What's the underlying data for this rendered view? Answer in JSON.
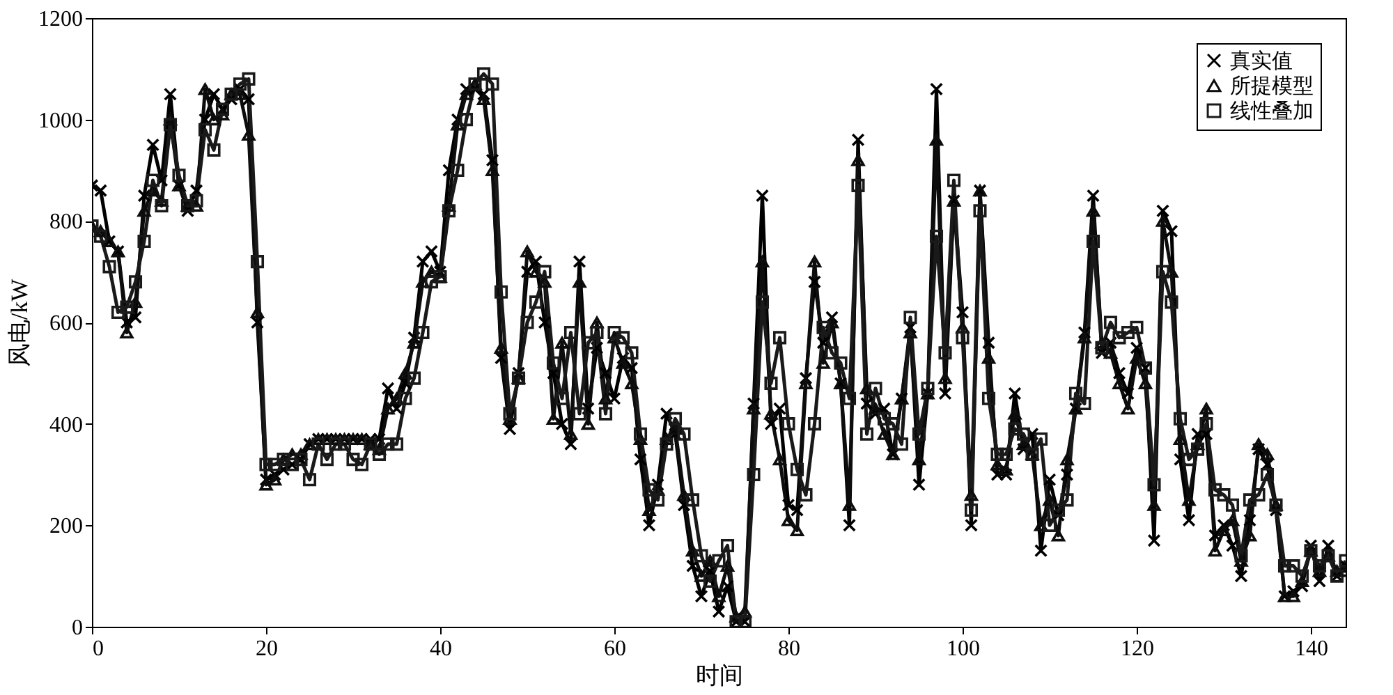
{
  "chart_data": {
    "type": "line",
    "xlabel": "时间",
    "ylabel": "风电/kW",
    "x": [
      0,
      1,
      2,
      3,
      4,
      5,
      6,
      7,
      8,
      9,
      10,
      11,
      12,
      13,
      14,
      15,
      16,
      17,
      18,
      19,
      20,
      21,
      22,
      23,
      24,
      25,
      26,
      27,
      28,
      29,
      30,
      31,
      32,
      33,
      34,
      35,
      36,
      37,
      38,
      39,
      40,
      41,
      42,
      43,
      44,
      45,
      46,
      47,
      48,
      49,
      50,
      51,
      52,
      53,
      54,
      55,
      56,
      57,
      58,
      59,
      60,
      61,
      62,
      63,
      64,
      65,
      66,
      67,
      68,
      69,
      70,
      71,
      72,
      73,
      74,
      75,
      76,
      77,
      78,
      79,
      80,
      81,
      82,
      83,
      84,
      85,
      86,
      87,
      88,
      89,
      90,
      91,
      92,
      93,
      94,
      95,
      96,
      97,
      98,
      99,
      100,
      101,
      102,
      103,
      104,
      105,
      106,
      107,
      108,
      109,
      110,
      111,
      112,
      113,
      114,
      115,
      116,
      117,
      118,
      119,
      120,
      121,
      122,
      123,
      124,
      125,
      126,
      127,
      128,
      129,
      130,
      131,
      132,
      133,
      134,
      135,
      136,
      137,
      138,
      139,
      140,
      141,
      142,
      143,
      144
    ],
    "series": [
      {
        "name": "真实值",
        "color": "#000000",
        "marker": "cross",
        "values": [
          870,
          860,
          760,
          740,
          600,
          610,
          850,
          950,
          880,
          1050,
          870,
          820,
          860,
          1000,
          1050,
          1020,
          1040,
          1060,
          1040,
          600,
          290,
          300,
          310,
          320,
          330,
          360,
          370,
          370,
          370,
          370,
          370,
          370,
          370,
          370,
          470,
          430,
          480,
          570,
          720,
          740,
          700,
          900,
          1000,
          1060,
          1060,
          1050,
          920,
          530,
          390,
          500,
          700,
          720,
          600,
          500,
          400,
          360,
          720,
          430,
          550,
          500,
          450,
          530,
          510,
          330,
          200,
          280,
          420,
          380,
          240,
          120,
          60,
          110,
          30,
          80,
          10,
          10,
          440,
          850,
          400,
          430,
          240,
          230,
          490,
          680,
          560,
          610,
          480,
          200,
          960,
          440,
          420,
          430,
          340,
          450,
          590,
          280,
          460,
          1060,
          460,
          840,
          620,
          200,
          860,
          560,
          300,
          300,
          460,
          350,
          380,
          150,
          290,
          220,
          300,
          430,
          580,
          850,
          540,
          560,
          500,
          460,
          550,
          510,
          170,
          820,
          780,
          330,
          210,
          380,
          380,
          180,
          200,
          160,
          100,
          210,
          350,
          320,
          230,
          60,
          70,
          80,
          160,
          90,
          160,
          100,
          120
        ]
      },
      {
        "name": "所提模型",
        "color": "#0d0d0d",
        "marker": "triangle",
        "values": [
          790,
          780,
          760,
          740,
          580,
          640,
          820,
          860,
          840,
          1000,
          870,
          830,
          830,
          1060,
          1000,
          1010,
          1050,
          1050,
          970,
          620,
          280,
          290,
          330,
          340,
          340,
          360,
          370,
          370,
          370,
          370,
          370,
          370,
          360,
          350,
          430,
          450,
          500,
          560,
          680,
          700,
          690,
          830,
          990,
          1050,
          1070,
          1040,
          900,
          550,
          410,
          490,
          740,
          700,
          680,
          410,
          560,
          380,
          680,
          400,
          600,
          450,
          570,
          520,
          480,
          370,
          230,
          270,
          370,
          390,
          260,
          150,
          100,
          130,
          60,
          120,
          20,
          30,
          430,
          720,
          420,
          330,
          210,
          190,
          480,
          720,
          520,
          600,
          480,
          240,
          920,
          470,
          430,
          380,
          340,
          450,
          580,
          330,
          460,
          960,
          490,
          840,
          590,
          260,
          860,
          530,
          320,
          310,
          420,
          360,
          340,
          200,
          250,
          180,
          330,
          430,
          570,
          820,
          560,
          540,
          480,
          430,
          530,
          480,
          240,
          800,
          700,
          370,
          250,
          360,
          430,
          150,
          190,
          210,
          130,
          180,
          360,
          340,
          240,
          60,
          60,
          90,
          150,
          110,
          140,
          110,
          110
        ]
      },
      {
        "name": "线性叠加",
        "color": "#1a1a1a",
        "marker": "square",
        "values": [
          790,
          770,
          710,
          620,
          630,
          680,
          760,
          880,
          830,
          990,
          890,
          830,
          840,
          980,
          940,
          1020,
          1050,
          1070,
          1080,
          720,
          320,
          320,
          330,
          320,
          330,
          290,
          360,
          330,
          360,
          360,
          330,
          320,
          360,
          340,
          360,
          360,
          450,
          490,
          580,
          680,
          690,
          820,
          900,
          1000,
          1070,
          1090,
          1070,
          660,
          420,
          490,
          600,
          640,
          700,
          520,
          450,
          580,
          420,
          560,
          580,
          420,
          580,
          570,
          540,
          380,
          270,
          250,
          360,
          410,
          380,
          250,
          140,
          90,
          130,
          160,
          10,
          10,
          300,
          640,
          480,
          570,
          400,
          310,
          260,
          400,
          590,
          540,
          520,
          450,
          870,
          380,
          470,
          410,
          400,
          360,
          610,
          380,
          470,
          770,
          540,
          880,
          570,
          230,
          820,
          450,
          340,
          340,
          390,
          380,
          340,
          370,
          200,
          230,
          250,
          460,
          440,
          760,
          550,
          600,
          570,
          580,
          590,
          510,
          280,
          700,
          640,
          410,
          330,
          350,
          400,
          270,
          260,
          240,
          140,
          250,
          260,
          300,
          240,
          120,
          120,
          100,
          150,
          120,
          140,
          100,
          130
        ]
      }
    ],
    "xlim": [
      0,
      144
    ],
    "xticks": [
      0,
      20,
      40,
      60,
      80,
      100,
      120,
      140
    ],
    "ylim": [
      0,
      1200
    ],
    "yticks": [
      0,
      200,
      400,
      600,
      800,
      1000,
      1200
    ],
    "grid": false,
    "legend": "top right",
    "line_style": "solid"
  }
}
